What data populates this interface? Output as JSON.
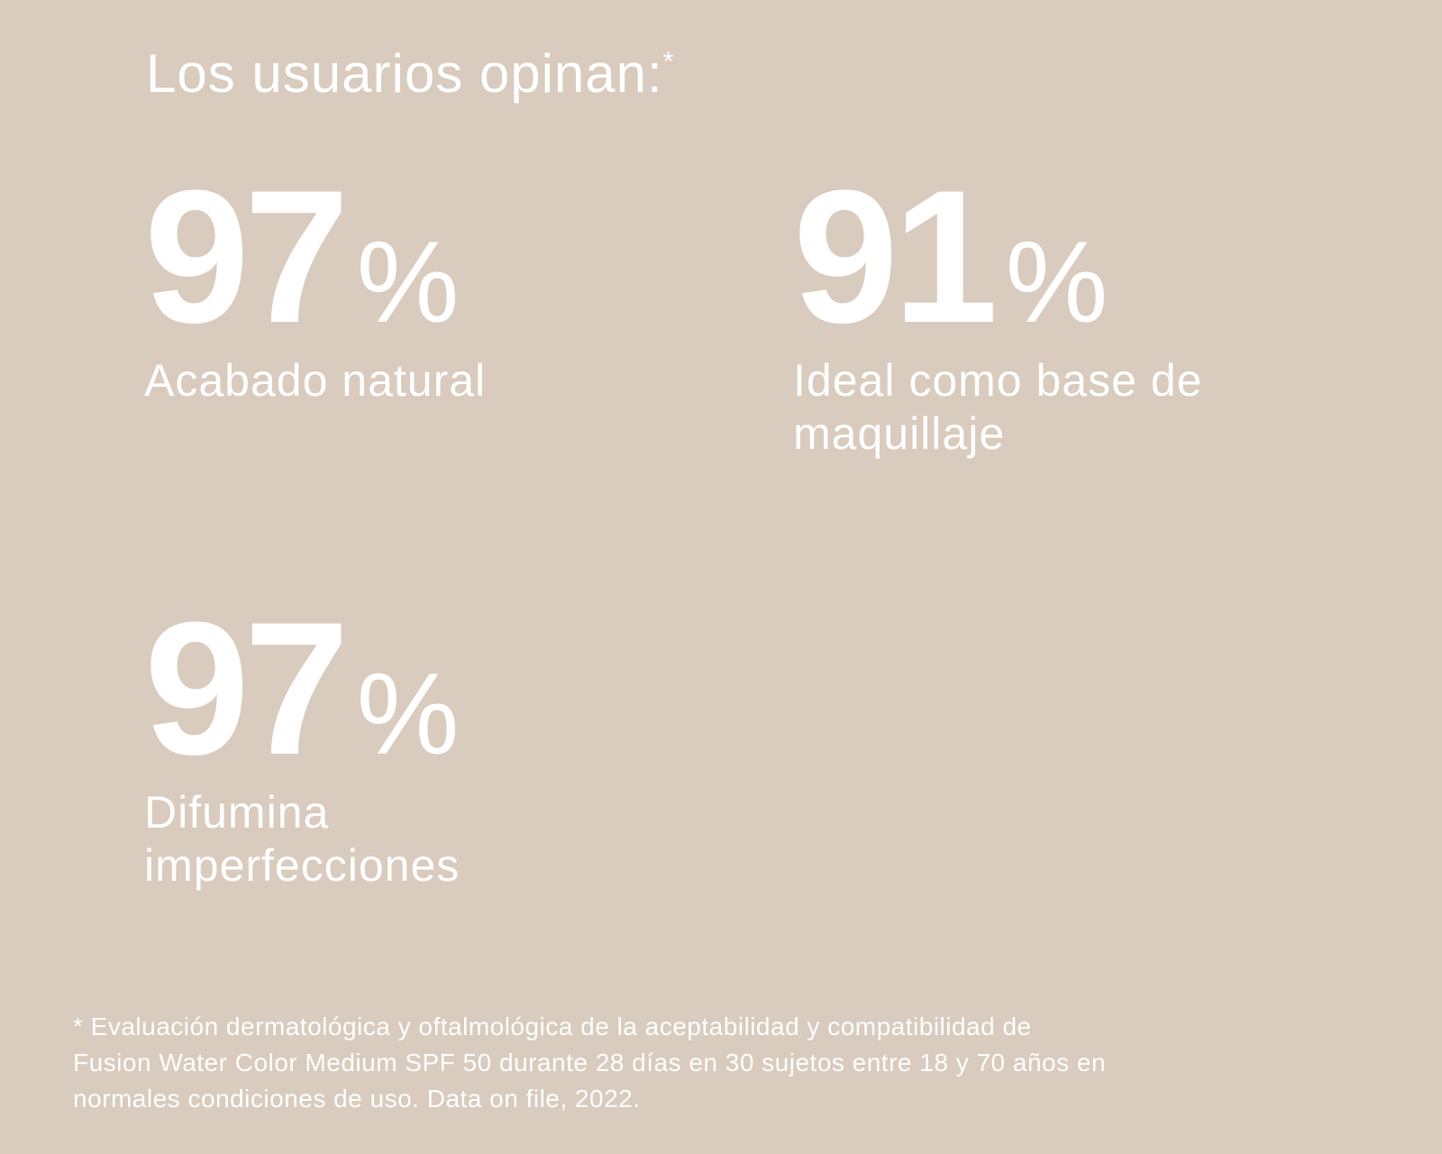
{
  "title": "Los usuarios opinan:",
  "title_mark": "*",
  "stats": [
    {
      "value": 97,
      "unit": "%",
      "label": [
        "Acabado natural"
      ]
    },
    {
      "value": 91,
      "unit": "%",
      "label": [
        "Ideal como base de",
        "maquillaje"
      ]
    },
    {
      "value": 97,
      "unit": "%",
      "label": [
        "Difumina",
        "imperfecciones"
      ]
    }
  ],
  "footnote": [
    "* Evaluación dermatológica y oftalmológica de la aceptabilidad y compatibilidad de",
    "Fusion Water Color Medium SPF 50 durante 28 días en 30 sujetos entre 18 y 70 años en",
    "normales condiciones de uso. Data on file, 2022."
  ]
}
